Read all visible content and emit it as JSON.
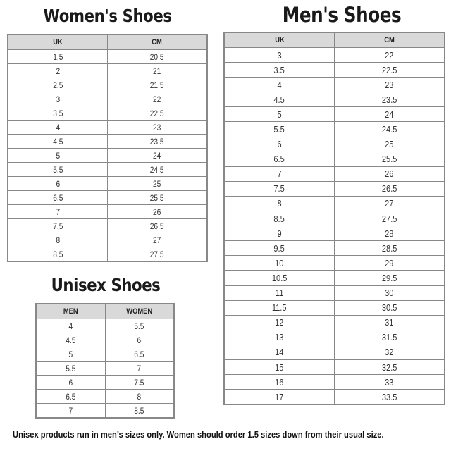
{
  "women": {
    "title": "Women's Shoes",
    "headers": [
      "UK",
      "CM"
    ],
    "rows": [
      [
        "1.5",
        "20.5"
      ],
      [
        "2",
        "21"
      ],
      [
        "2.5",
        "21.5"
      ],
      [
        "3",
        "22"
      ],
      [
        "3.5",
        "22.5"
      ],
      [
        "4",
        "23"
      ],
      [
        "4.5",
        "23.5"
      ],
      [
        "5",
        "24"
      ],
      [
        "5.5",
        "24.5"
      ],
      [
        "6",
        "25"
      ],
      [
        "6.5",
        "25.5"
      ],
      [
        "7",
        "26"
      ],
      [
        "7.5",
        "26.5"
      ],
      [
        "8",
        "27"
      ],
      [
        "8.5",
        "27.5"
      ]
    ]
  },
  "men": {
    "title": "Men's Shoes",
    "headers": [
      "UK",
      "CM"
    ],
    "rows": [
      [
        "3",
        "22"
      ],
      [
        "3.5",
        "22.5"
      ],
      [
        "4",
        "23"
      ],
      [
        "4.5",
        "23.5"
      ],
      [
        "5",
        "24"
      ],
      [
        "5.5",
        "24.5"
      ],
      [
        "6",
        "25"
      ],
      [
        "6.5",
        "25.5"
      ],
      [
        "7",
        "26"
      ],
      [
        "7.5",
        "26.5"
      ],
      [
        "8",
        "27"
      ],
      [
        "8.5",
        "27.5"
      ],
      [
        "9",
        "28"
      ],
      [
        "9.5",
        "28.5"
      ],
      [
        "10",
        "29"
      ],
      [
        "10.5",
        "29.5"
      ],
      [
        "11",
        "30"
      ],
      [
        "11.5",
        "30.5"
      ],
      [
        "12",
        "31"
      ],
      [
        "13",
        "31.5"
      ],
      [
        "14",
        "32"
      ],
      [
        "15",
        "32.5"
      ],
      [
        "16",
        "33"
      ],
      [
        "17",
        "33.5"
      ]
    ]
  },
  "unisex": {
    "title": "Unisex Shoes",
    "headers": [
      "MEN",
      "WOMEN"
    ],
    "rows": [
      [
        "4",
        "5.5"
      ],
      [
        "4.5",
        "6"
      ],
      [
        "5",
        "6.5"
      ],
      [
        "5.5",
        "7"
      ],
      [
        "6",
        "7.5"
      ],
      [
        "6.5",
        "8"
      ],
      [
        "7",
        "8.5"
      ]
    ]
  },
  "footer": "Unisex products run in men’s sizes only. Women should order 1.5 sizes down from their usual size."
}
